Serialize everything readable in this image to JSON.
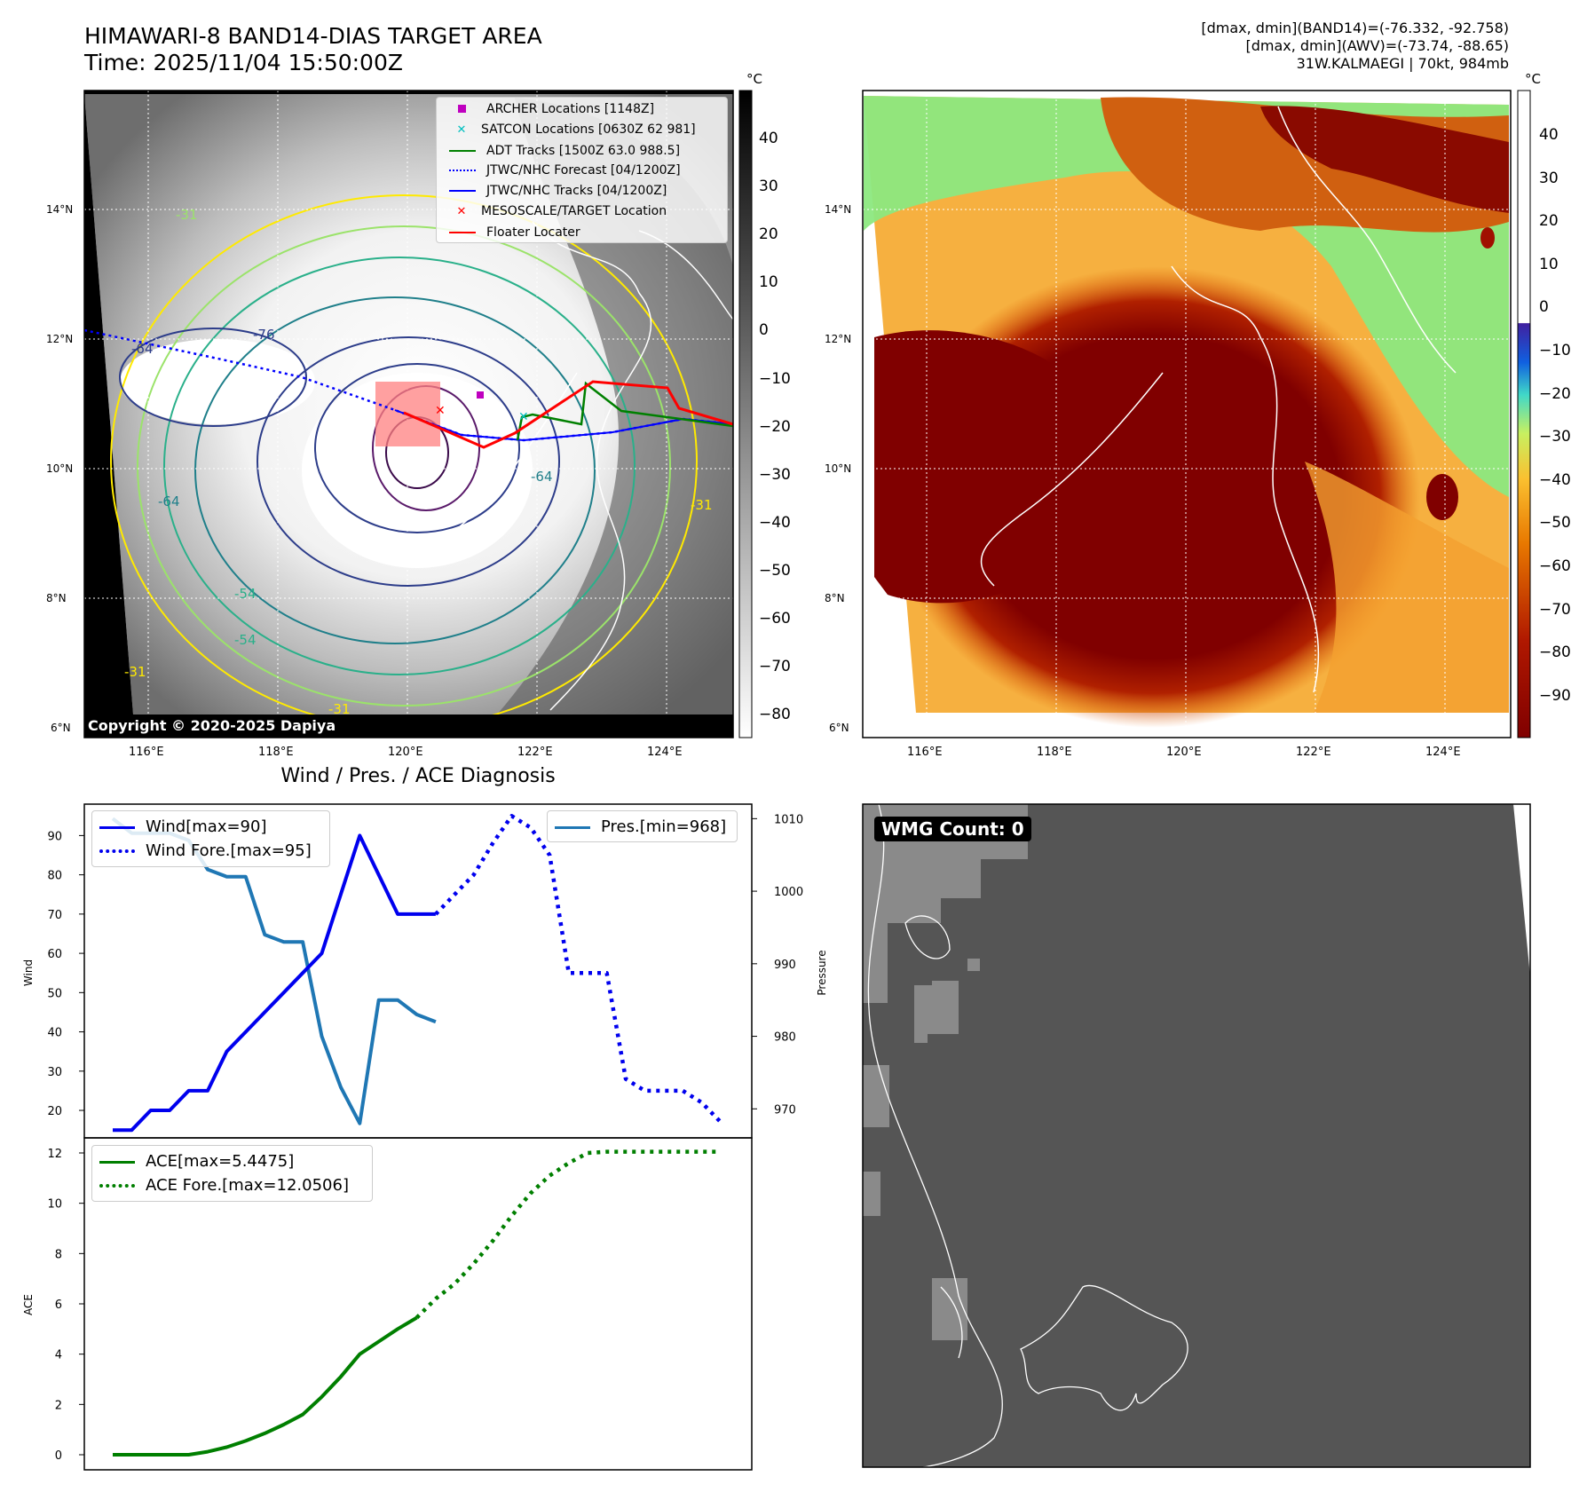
{
  "header": {
    "title_line1": "HIMAWARI-8 BAND14-DIAS TARGET AREA",
    "title_line2": "Time: 2025/11/04 15:50:00Z",
    "right_line1": "[dmax, dmin](BAND14)=(-76.332, -92.758)",
    "right_line2": "[dmax, dmin](AWV)=(-73.74, -88.65)",
    "right_line3": "31W.KALMAEGI | 70kt, 984mb",
    "diagnosis_title": "Wind / Pres. / ACE Diagnosis"
  },
  "colors": {
    "wind": "#0000ee",
    "pressure": "#1f77b4",
    "ace": "#007f00",
    "archer": "#bf00bf",
    "satcon": "#00bfbf",
    "adt": "#008000",
    "jtwc": "#0000ff",
    "meso": "#ff0000",
    "floater": "#ff0000",
    "wmg_bg": "#555555",
    "wmg_patch": "#8a8a8a"
  },
  "map": {
    "lat_labels": [
      "14°N",
      "12°N",
      "10°N",
      "8°N",
      "6°N"
    ],
    "lon_labels": [
      "116°E",
      "118°E",
      "120°E",
      "122°E",
      "124°E"
    ],
    "copyright": "Copyright © 2020-2025 Dapiya",
    "legend": [
      "ARCHER Locations [1148Z]",
      "SATCON Locations [0630Z 62 981]",
      "ADT Tracks [1500Z 63.0 988.5]",
      "JTWC/NHC Forecast [04/1200Z]",
      "JTWC/NHC Tracks [04/1200Z]",
      "MESOSCALE/TARGET Location",
      "Floater Locater"
    ],
    "contour_labels": [
      "-31",
      "-54",
      "-54",
      "-31",
      "-64",
      "-64",
      "-76",
      "-64",
      "-31",
      "-31"
    ]
  },
  "colorbar1": {
    "unit": "°C",
    "ticks": [
      "40",
      "30",
      "20",
      "10",
      "0",
      "−10",
      "−20",
      "−30",
      "−40",
      "−50",
      "−60",
      "−70",
      "−80"
    ]
  },
  "colorbar2": {
    "unit": "°C",
    "ticks": [
      "40",
      "30",
      "20",
      "10",
      "0",
      "−10",
      "−20",
      "−30",
      "−40",
      "−50",
      "−60",
      "−70",
      "−80",
      "−90"
    ]
  },
  "chart_data": [
    {
      "type": "line",
      "ylabel": "Wind",
      "ylabel_right": "Pressure",
      "yticks": [
        "90",
        "80",
        "70",
        "60",
        "50",
        "40",
        "30",
        "20"
      ],
      "yticks_right": [
        "1010",
        "1000",
        "990",
        "980",
        "970"
      ],
      "ylim": [
        13,
        98
      ],
      "ylim_right": [
        966,
        1012
      ],
      "x": [
        0,
        1,
        2,
        3,
        4,
        5,
        6,
        7,
        8,
        9,
        10,
        11,
        12,
        13,
        14,
        15,
        16,
        17,
        18,
        19,
        20,
        21,
        22,
        23,
        24,
        25,
        26,
        27,
        28,
        29,
        30,
        31,
        32
      ],
      "series": [
        {
          "name": "Wind[max=90]",
          "axis": "left",
          "style": "solid",
          "values": [
            15,
            15,
            20,
            20,
            25,
            25,
            35,
            40,
            45,
            50,
            55,
            60,
            75,
            90,
            80,
            70,
            70,
            70,
            null,
            null,
            null,
            null,
            null,
            null,
            null,
            null,
            null,
            null,
            null,
            null,
            null,
            null,
            null
          ]
        },
        {
          "name": "Wind Fore.[max=95]",
          "axis": "left",
          "style": "dotted",
          "values": [
            null,
            null,
            null,
            null,
            null,
            null,
            null,
            null,
            null,
            null,
            null,
            null,
            null,
            null,
            null,
            null,
            null,
            70,
            75,
            80,
            88,
            95,
            92,
            85,
            55,
            55,
            55,
            28,
            25,
            25,
            25,
            22,
            17
          ]
        },
        {
          "name": "Pres.[min=968]",
          "axis": "right",
          "style": "solid",
          "values": [
            1010,
            1008,
            1008,
            1008,
            1007,
            1003,
            1002,
            1002,
            994,
            993,
            993,
            980,
            973,
            968,
            985,
            985,
            983,
            982,
            null,
            null,
            null,
            null,
            null,
            null,
            null,
            null,
            null,
            null,
            null,
            null,
            null,
            null,
            null
          ]
        }
      ]
    },
    {
      "type": "line",
      "ylabel": "ACE",
      "yticks": [
        "12",
        "10",
        "8",
        "6",
        "4",
        "2",
        "0"
      ],
      "ylim": [
        -0.6,
        12.6
      ],
      "x": [
        0,
        1,
        2,
        3,
        4,
        5,
        6,
        7,
        8,
        9,
        10,
        11,
        12,
        13,
        14,
        15,
        16,
        17,
        18,
        19,
        20,
        21,
        22,
        23,
        24,
        25,
        26,
        27,
        28,
        29,
        30,
        31,
        32
      ],
      "series": [
        {
          "name": "ACE[max=5.4475]",
          "style": "solid",
          "values": [
            0,
            0,
            0,
            0,
            0,
            0.12,
            0.3,
            0.55,
            0.85,
            1.2,
            1.6,
            2.3,
            3.1,
            4.0,
            4.5,
            5.0,
            5.45,
            null,
            null,
            null,
            null,
            null,
            null,
            null,
            null,
            null,
            null,
            null,
            null,
            null,
            null,
            null,
            null
          ]
        },
        {
          "name": "ACE Fore.[max=12.0506]",
          "style": "dotted",
          "values": [
            null,
            null,
            null,
            null,
            null,
            null,
            null,
            null,
            null,
            null,
            null,
            null,
            null,
            null,
            null,
            null,
            5.45,
            6.2,
            6.8,
            7.6,
            8.5,
            9.5,
            10.4,
            11.1,
            11.6,
            12.0,
            12.05,
            12.05,
            12.05,
            12.05,
            12.05,
            12.05,
            12.05
          ]
        }
      ]
    }
  ],
  "wmg": {
    "label": "WMG Count: 0"
  }
}
